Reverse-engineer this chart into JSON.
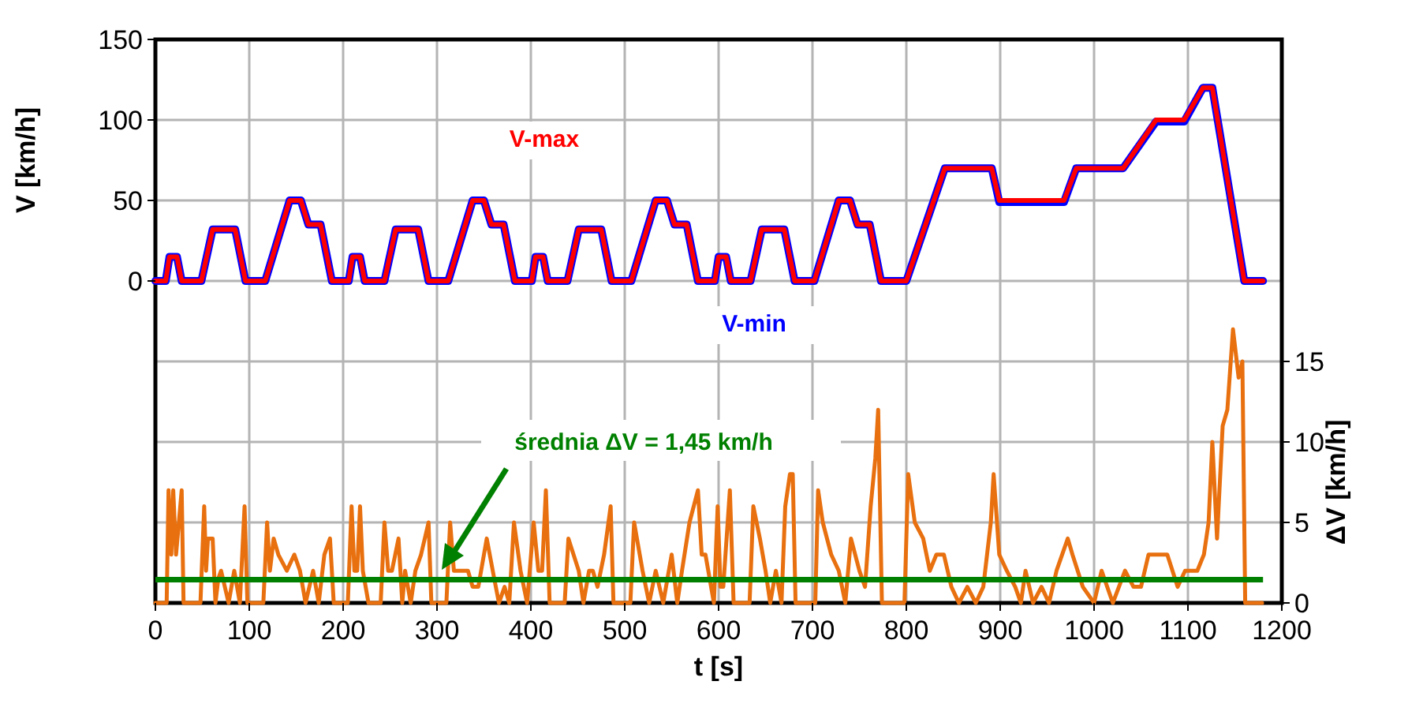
{
  "chart_data": {
    "type": "line",
    "xlabel": "t [s]",
    "ylabel": "V [km/h]",
    "y2label": "ΔV [km/h]",
    "xlim": [
      0,
      1200
    ],
    "xticks": [
      0,
      100,
      200,
      300,
      400,
      500,
      600,
      700,
      800,
      900,
      1000,
      1100,
      1200
    ],
    "ylim": [
      -200,
      150
    ],
    "yticks": [
      0,
      50,
      100,
      150
    ],
    "y2lim": [
      0,
      35
    ],
    "y2ticks": [
      0,
      5,
      10,
      15
    ],
    "grid": true,
    "line_style": "solid",
    "series": [
      {
        "name": "V-min",
        "color": "#0000ff",
        "x": [
          0,
          11,
          15,
          23,
          28,
          49,
          61,
          85,
          96,
          117,
          143,
          155,
          163,
          176,
          188,
          195,
          206,
          210,
          218,
          223,
          244,
          256,
          280,
          291,
          312,
          338,
          350,
          358,
          371,
          383,
          390,
          401,
          405,
          413,
          418,
          439,
          451,
          475,
          486,
          507,
          533,
          545,
          553,
          566,
          578,
          585,
          596,
          600,
          608,
          613,
          634,
          646,
          670,
          681,
          702,
          728,
          740,
          748,
          761,
          773,
          780,
          800,
          841,
          891,
          899,
          968,
          981,
          1031,
          1066,
          1096,
          1116,
          1126,
          1160,
          1180
        ],
        "values": [
          0,
          0,
          15,
          15,
          0,
          0,
          32,
          32,
          0,
          0,
          50,
          50,
          35,
          35,
          0,
          0,
          0,
          15,
          15,
          0,
          0,
          32,
          32,
          0,
          0,
          50,
          50,
          35,
          35,
          0,
          0,
          0,
          15,
          15,
          0,
          0,
          32,
          32,
          0,
          0,
          50,
          50,
          35,
          35,
          0,
          0,
          0,
          15,
          15,
          0,
          0,
          32,
          32,
          0,
          0,
          50,
          50,
          35,
          35,
          0,
          0,
          0,
          70,
          70,
          49,
          49,
          70,
          70,
          99,
          99,
          120,
          120,
          0,
          0
        ]
      },
      {
        "name": "V-max",
        "color": "#ff0000",
        "x": [
          0,
          11,
          15,
          23,
          28,
          49,
          61,
          85,
          96,
          117,
          143,
          155,
          163,
          176,
          188,
          195,
          206,
          210,
          218,
          223,
          244,
          256,
          280,
          291,
          312,
          338,
          350,
          358,
          371,
          383,
          390,
          401,
          405,
          413,
          418,
          439,
          451,
          475,
          486,
          507,
          533,
          545,
          553,
          566,
          578,
          585,
          596,
          600,
          608,
          613,
          634,
          646,
          670,
          681,
          702,
          728,
          740,
          748,
          761,
          773,
          780,
          800,
          841,
          891,
          899,
          968,
          981,
          1031,
          1066,
          1096,
          1116,
          1126,
          1160,
          1180
        ],
        "values": [
          0,
          0,
          15,
          15,
          0,
          0,
          32,
          32,
          0,
          0,
          50,
          50,
          35,
          35,
          0,
          0,
          0,
          15,
          15,
          0,
          0,
          32,
          32,
          0,
          0,
          50,
          50,
          35,
          35,
          0,
          0,
          0,
          15,
          15,
          0,
          0,
          32,
          32,
          0,
          0,
          50,
          50,
          35,
          35,
          0,
          0,
          0,
          15,
          15,
          0,
          0,
          32,
          32,
          0,
          0,
          50,
          50,
          35,
          35,
          0,
          0,
          0,
          70,
          70,
          50,
          50,
          70,
          70,
          100,
          100,
          120,
          120,
          0,
          0
        ]
      },
      {
        "color": "#e8700f",
        "axis": "y2",
        "x": [
          0,
          12,
          14,
          17,
          19,
          22,
          28,
          30,
          48,
          52,
          54,
          56,
          61,
          64,
          67,
          70,
          78,
          84,
          90,
          95,
          98,
          115,
          119,
          122,
          126,
          131,
          140,
          148,
          154,
          160,
          168,
          174,
          180,
          186,
          190,
          205,
          209,
          212,
          215,
          218,
          221,
          227,
          240,
          244,
          248,
          252,
          259,
          263,
          266,
          272,
          277,
          283,
          291,
          294,
          310,
          314,
          318,
          322,
          333,
          338,
          344,
          353,
          361,
          366,
          372,
          377,
          382,
          389,
          396,
          403,
          408,
          412,
          416,
          420,
          436,
          440,
          451,
          456,
          462,
          466,
          471,
          478,
          485,
          488,
          506,
          510,
          519,
          526,
          533,
          541,
          550,
          556,
          561,
          569,
          578,
          582,
          586,
          595,
          599,
          602,
          605,
          612,
          616,
          633,
          637,
          644,
          650,
          655,
          661,
          667,
          671,
          676,
          679,
          682,
          703,
          706,
          711,
          720,
          728,
          735,
          741,
          750,
          756,
          762,
          767,
          770,
          774,
          798,
          802,
          809,
          818,
          825,
          832,
          840,
          848,
          856,
          865,
          874,
          882,
          890,
          893,
          899,
          907,
          916,
          922,
          927,
          935,
          944,
          952,
          960,
          972,
          977,
          988,
          1000,
          1008,
          1020,
          1033,
          1042,
          1050,
          1058,
          1067,
          1078,
          1089,
          1097,
          1110,
          1117,
          1122,
          1126,
          1131,
          1137,
          1142,
          1148,
          1154,
          1158,
          1161,
          1179
        ],
        "values": [
          0,
          0,
          7,
          3,
          7,
          3,
          7,
          0,
          0,
          6,
          2,
          4,
          4,
          0,
          1.5,
          2,
          0,
          2,
          0,
          6,
          0,
          0,
          5,
          2,
          4,
          3,
          2,
          3,
          2,
          0,
          2,
          0,
          3,
          4,
          0,
          0,
          6,
          2,
          2,
          6,
          2,
          0,
          0,
          5,
          2,
          2,
          4,
          0,
          2,
          0,
          2,
          3,
          5,
          0,
          0,
          5,
          2,
          2,
          2,
          1,
          1,
          4,
          1.5,
          0,
          1,
          0,
          5,
          2,
          0,
          5,
          2,
          2,
          7,
          0,
          0,
          4,
          2,
          0,
          2,
          2,
          1,
          3,
          6,
          0,
          0,
          5,
          2,
          0,
          2,
          0,
          3,
          0,
          2,
          5,
          7,
          3,
          3,
          0,
          6,
          1,
          1,
          7,
          0,
          0,
          6,
          4,
          2,
          0,
          2,
          0,
          6,
          8,
          8,
          0,
          0,
          7,
          5,
          3,
          2,
          0,
          4,
          2,
          1,
          6,
          9,
          12,
          0,
          0,
          8,
          5,
          4,
          2,
          3,
          3,
          1,
          0,
          1,
          0,
          1,
          5,
          8,
          3,
          2,
          1,
          0,
          2,
          0,
          1,
          0,
          2,
          4,
          3,
          1,
          0,
          2,
          0,
          2,
          1,
          1,
          3,
          3,
          3,
          1,
          2,
          2,
          3,
          5,
          10,
          4,
          11,
          12,
          17,
          14,
          15,
          0,
          0
        ]
      }
    ],
    "ref_lines": [
      {
        "axis": "y2",
        "value": 1.45,
        "label": "średnia ΔV = 1,45 km/h",
        "color": "#008000"
      }
    ]
  }
}
